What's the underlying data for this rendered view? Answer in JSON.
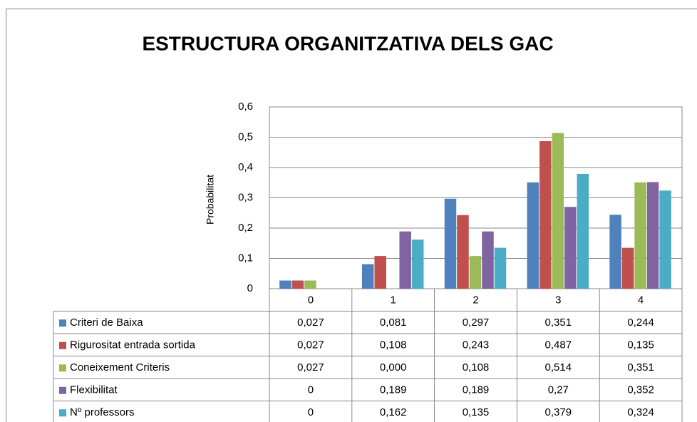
{
  "chart_data": {
    "type": "bar",
    "title": "ESTRUCTURA ORGANITZATIVA DELS GAC",
    "y_label": "Probabilitat",
    "categories": [
      "0",
      "1",
      "2",
      "3",
      "4"
    ],
    "series": [
      {
        "name": "Criteri de Baixa",
        "color": "#4f81bd",
        "values": [
          0.027,
          0.081,
          0.297,
          0.351,
          0.244
        ],
        "value_labels": [
          "0,027",
          "0,081",
          "0,297",
          "0,351",
          "0,244"
        ]
      },
      {
        "name": "Rigurositat entrada sortida",
        "color": "#c0504d",
        "values": [
          0.027,
          0.108,
          0.243,
          0.487,
          0.135
        ],
        "value_labels": [
          "0,027",
          "0,108",
          "0,243",
          "0,487",
          "0,135"
        ]
      },
      {
        "name": "Coneixement Criteris",
        "color": "#9bbb59",
        "values": [
          0.027,
          0,
          0.108,
          0.514,
          0.351
        ],
        "value_labels": [
          "0,027",
          "0,000",
          "0,108",
          "0,514",
          "0,351"
        ]
      },
      {
        "name": "Flexibilitat",
        "color": "#8064a2",
        "values": [
          0,
          0.189,
          0.189,
          0.27,
          0.352
        ],
        "value_labels": [
          "0",
          "0,189",
          "0,189",
          "0,27",
          "0,352"
        ]
      },
      {
        "name": "Nº professors",
        "color": "#4bacc6",
        "values": [
          0,
          0.162,
          0.135,
          0.379,
          0.324
        ],
        "value_labels": [
          "0",
          "0,162",
          "0,135",
          "0,379",
          "0,324"
        ]
      }
    ],
    "ylim": [
      0,
      0.6
    ],
    "yticks": [
      0,
      {
        "value": 0.1,
        "label": "0,1"
      },
      {
        "value": 0.2,
        "label": "0,2"
      },
      {
        "value": 0.3,
        "label": "0,3"
      },
      {
        "value": 0.4,
        "label": "0,4"
      },
      {
        "value": 0.5,
        "label": "0,5"
      },
      {
        "value": 0.6,
        "label": "0,6"
      }
    ],
    "grid": true
  }
}
